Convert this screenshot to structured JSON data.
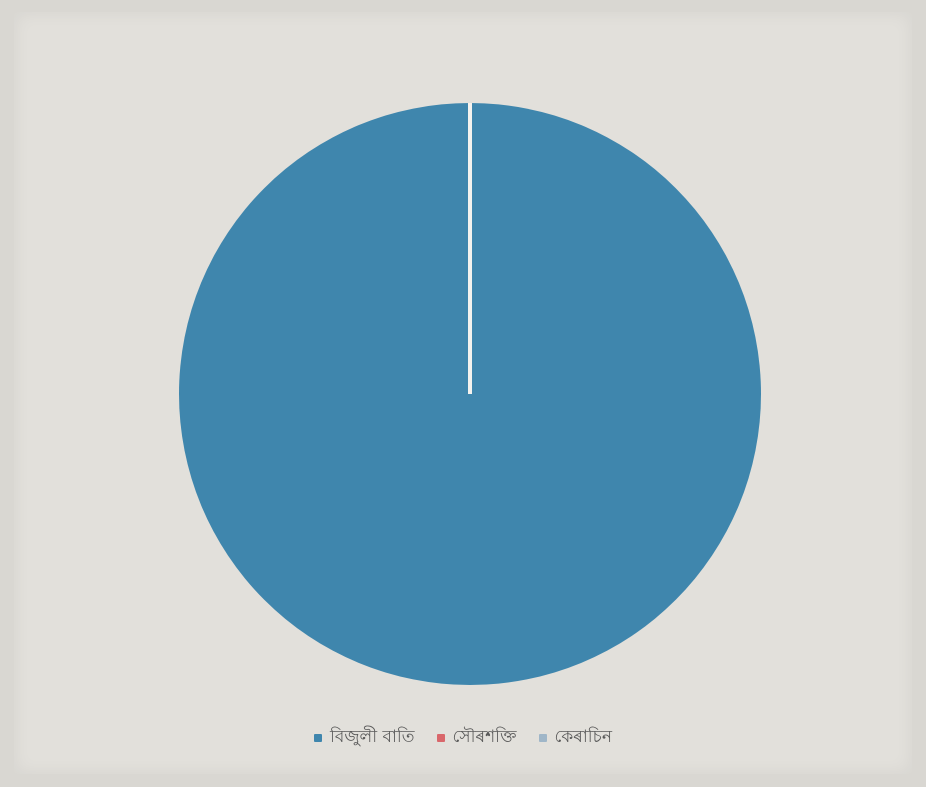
{
  "chart_data": {
    "type": "pie",
    "title": "",
    "start_angle": "top",
    "direction": "clockwise",
    "categories": [
      "বিজুলী বাতি",
      "সৌৰশক্তি",
      "কেৰাচিন"
    ],
    "values": [
      100,
      0,
      0
    ],
    "colors": [
      "#3f86ad",
      "#d9676b",
      "#9fb6c8"
    ],
    "legend_position": "bottom"
  }
}
